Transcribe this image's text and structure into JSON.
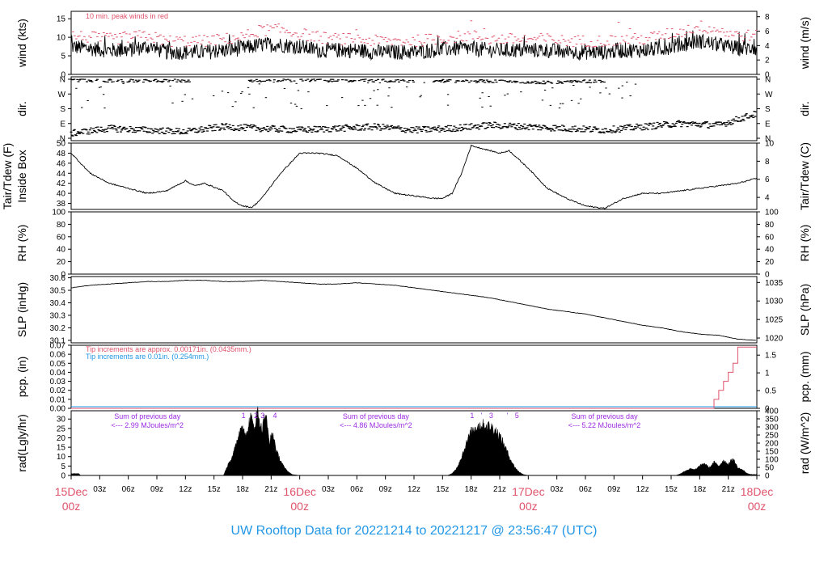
{
  "footer_title": "UW Rooftop Data for 20221214  to  20221217 @ 23:56:47  (UTC)",
  "colors": {
    "trace": "#000000",
    "peak": "#df536b",
    "rain_tip": "#df536b",
    "rain_baseline": "#2297e6",
    "purple": "#9a2be0"
  },
  "time_axis": {
    "range_hours": [
      0,
      72
    ],
    "tick_labels": [
      {
        "h": 3,
        "label": "03z"
      },
      {
        "h": 6,
        "label": "06z"
      },
      {
        "h": 9,
        "label": "09z"
      },
      {
        "h": 12,
        "label": "12z"
      },
      {
        "h": 15,
        "label": "15z"
      },
      {
        "h": 18,
        "label": "18z"
      },
      {
        "h": 21,
        "label": "21z"
      },
      {
        "h": 27,
        "label": "03z"
      },
      {
        "h": 30,
        "label": "06z"
      },
      {
        "h": 33,
        "label": "09z"
      },
      {
        "h": 36,
        "label": "12z"
      },
      {
        "h": 39,
        "label": "15z"
      },
      {
        "h": 42,
        "label": "18z"
      },
      {
        "h": 45,
        "label": "21z"
      },
      {
        "h": 51,
        "label": "03z"
      },
      {
        "h": 54,
        "label": "06z"
      },
      {
        "h": 57,
        "label": "09z"
      },
      {
        "h": 60,
        "label": "12z"
      },
      {
        "h": 63,
        "label": "15z"
      },
      {
        "h": 66,
        "label": "18z"
      },
      {
        "h": 69,
        "label": "21z"
      }
    ],
    "day_labels": [
      {
        "h": 0,
        "line1": "15Dec",
        "line2": "00z"
      },
      {
        "h": 24,
        "line1": "16Dec",
        "line2": "00z"
      },
      {
        "h": 48,
        "line1": "17Dec",
        "line2": "00z"
      },
      {
        "h": 72,
        "line1": "18Dec",
        "line2": "00z"
      }
    ]
  },
  "chart_data": [
    {
      "type": "line",
      "id": "wind",
      "ylabel_left": "wind (kts)",
      "ylabel_right": "wind (m/s)",
      "ylim": [
        0,
        17
      ],
      "yticks_left": [
        0,
        5,
        10,
        15
      ],
      "right_ylim": [
        0,
        8.75
      ],
      "yticks_right": [
        0,
        2,
        4,
        6,
        8
      ],
      "annotation": "10 min. peak winds in red",
      "series": [
        {
          "name": "",
          "x": [
            0,
            2,
            4,
            6,
            8,
            10,
            12,
            14,
            16,
            18,
            20,
            22,
            24,
            26,
            28,
            30,
            32,
            34,
            36,
            38,
            40,
            42,
            44,
            46,
            48,
            50,
            52,
            54,
            56,
            58,
            60,
            62,
            64,
            66,
            68,
            70,
            72
          ],
          "values": [
            7.5,
            7,
            6.5,
            6.5,
            7.5,
            6,
            6,
            6,
            6.5,
            7,
            8,
            8,
            7.5,
            6.5,
            6.5,
            6.5,
            6,
            6,
            6,
            6.5,
            7,
            7,
            6.5,
            6.5,
            6.5,
            6.5,
            6,
            6,
            6,
            6.5,
            6.5,
            7,
            8,
            9,
            8,
            7,
            7
          ]
        },
        {
          "name": "10 min. peak winds",
          "x": [
            0,
            2,
            4,
            6,
            8,
            10,
            12,
            14,
            16,
            18,
            20,
            22,
            24,
            26,
            28,
            30,
            32,
            34,
            36,
            38,
            40,
            42,
            44,
            46,
            48,
            50,
            52,
            54,
            56,
            58,
            60,
            62,
            64,
            66,
            68,
            70,
            72
          ],
          "values": [
            10.5,
            10,
            9.5,
            10,
            10.5,
            9,
            9,
            9,
            9.5,
            10,
            12,
            12,
            11,
            10,
            9.5,
            9.5,
            9,
            9,
            9,
            9.5,
            10,
            10.5,
            9.5,
            9.5,
            9.5,
            9.5,
            9,
            9,
            9,
            9.5,
            9.5,
            10.5,
            11.5,
            13,
            12,
            10.5,
            10.5
          ]
        }
      ]
    },
    {
      "type": "scatter",
      "id": "dir",
      "ylabel_left": "dir.",
      "ylabel_right": "dir.",
      "yticks_left": [
        "N",
        "E",
        "S",
        "W",
        "N"
      ],
      "yticks_right": [
        "N",
        "E",
        "S",
        "W",
        "N"
      ],
      "series": [
        {
          "name": "",
          "x": [
            0,
            4,
            8,
            12,
            16,
            20,
            24,
            28,
            32,
            36,
            40,
            44,
            48,
            52,
            56,
            60,
            64,
            68,
            72
          ],
          "values": [
            30,
            60,
            50,
            40,
            70,
            60,
            50,
            60,
            70,
            50,
            60,
            80,
            70,
            60,
            50,
            70,
            90,
            80,
            150
          ]
        },
        {
          "name": "",
          "x": [
            0,
            6,
            12,
            20,
            26,
            32,
            38,
            44,
            50,
            56
          ],
          "values": [
            355,
            350,
            352,
            350,
            355,
            352,
            350,
            348,
            340,
            350
          ]
        }
      ]
    },
    {
      "type": "line",
      "id": "temp",
      "ylabel_left": "Tair/Tdew (F)",
      "ylabel_left2": "Inside Box",
      "ylabel_right": "Tair/Tdew (C)",
      "ylim": [
        36.8,
        50
      ],
      "yticks_left": [
        38,
        40,
        42,
        44,
        46,
        48,
        50
      ],
      "right_ylim": [
        2.67,
        10
      ],
      "yticks_right": [
        4,
        6,
        8,
        10
      ],
      "series": [
        {
          "name": "",
          "x": [
            0,
            1,
            2,
            4,
            6,
            8,
            10,
            12,
            13,
            14,
            16,
            17,
            18,
            19,
            20,
            22,
            24,
            26,
            28,
            30,
            32,
            34,
            36,
            38,
            39,
            40,
            41,
            42,
            44,
            45,
            46,
            48,
            50,
            52,
            54,
            56,
            58,
            60,
            62,
            64,
            66,
            68,
            70,
            72
          ],
          "values": [
            48,
            46,
            44,
            42,
            41,
            40,
            40.5,
            42.5,
            41.5,
            42,
            40.5,
            38.5,
            37.5,
            37.2,
            39,
            44,
            48,
            48,
            47.5,
            45,
            42,
            40,
            39.5,
            39,
            39,
            40,
            44,
            49.5,
            48.5,
            48,
            48.5,
            45,
            41,
            39,
            37.5,
            37,
            39,
            40,
            40,
            40.5,
            41,
            41.5,
            42,
            43
          ]
        }
      ]
    },
    {
      "type": "line",
      "id": "rh",
      "ylabel_left": "RH (%)",
      "ylabel_right": "RH (%)",
      "ylim": [
        0,
        100
      ],
      "yticks_left": [
        0,
        20,
        40,
        60,
        80,
        100
      ],
      "yticks_right": [
        0,
        20,
        40,
        60,
        80,
        100
      ],
      "series": []
    },
    {
      "type": "line",
      "id": "slp",
      "ylabel_left": "SLP (inHg)",
      "ylabel_right": "SLP (hPa)",
      "ylim": [
        30.08,
        30.61
      ],
      "yticks_left": [
        30.1,
        30.2,
        30.3,
        30.4,
        30.5,
        30.6
      ],
      "yticks_right": [
        1020,
        1025,
        1030,
        1035
      ],
      "right_ylim": [
        1018.7,
        1036.6
      ],
      "series": [
        {
          "name": "",
          "x": [
            0,
            2,
            4,
            6,
            8,
            10,
            12,
            14,
            16,
            18,
            20,
            22,
            24,
            26,
            28,
            30,
            32,
            34,
            36,
            38,
            40,
            42,
            44,
            46,
            48,
            50,
            52,
            54,
            56,
            58,
            60,
            62,
            64,
            66,
            68,
            70,
            72
          ],
          "values": [
            30.52,
            30.54,
            30.55,
            30.56,
            30.57,
            30.57,
            30.58,
            30.58,
            30.57,
            30.57,
            30.58,
            30.57,
            30.56,
            30.55,
            30.55,
            30.56,
            30.55,
            30.54,
            30.52,
            30.5,
            30.48,
            30.46,
            30.44,
            30.41,
            30.38,
            30.35,
            30.33,
            30.31,
            30.28,
            30.25,
            30.22,
            30.2,
            30.17,
            30.15,
            30.14,
            30.11,
            30.1
          ]
        }
      ]
    },
    {
      "type": "line",
      "id": "pcp",
      "ylabel_left": "pcp. (in)",
      "ylabel_right": "pcp. (mm)",
      "ylim": [
        0,
        0.07
      ],
      "yticks_left": [
        0,
        0.01,
        0.02,
        0.03,
        0.04,
        0.05,
        0.06,
        0.07
      ],
      "right_ylim": [
        0,
        1.778
      ],
      "yticks_right": [
        0,
        0.5,
        1,
        1.5
      ],
      "annotation_red": "Tip increments are approx. 0.00171in. (0.0435mm.)",
      "annotation_blue": "Tip increments are 0.01in. (0.254mm.)",
      "series": [
        {
          "name": "",
          "x": [
            0,
            67,
            67.5,
            68,
            68.5,
            69,
            69.5,
            70,
            72
          ],
          "values": [
            0,
            0,
            0.01,
            0.02,
            0.03,
            0.04,
            0.05,
            0.068,
            0.068
          ]
        }
      ]
    },
    {
      "type": "area",
      "id": "rad",
      "ylabel_left": "rad(Lgly/hr)",
      "ylabel_right": "rad (W/m^2)",
      "ylim": [
        0,
        34.4
      ],
      "yticks_left": [
        0,
        5,
        10,
        15,
        20,
        25,
        30
      ],
      "right_ylim": [
        0,
        400
      ],
      "yticks_right": [
        0,
        50,
        100,
        150,
        200,
        250,
        300,
        350,
        400
      ],
      "annotations": [
        {
          "h": 8,
          "line1": "Sum of previous day",
          "line2": "<--- 2.99 MJoules/m^2"
        },
        {
          "h": 32,
          "line1": "Sum of previous day",
          "line2": "<--- 4.86 MJoules/m^2"
        },
        {
          "h": 56,
          "line1": "Sum of previous day",
          "line2": "<--- 5.22 MJoules/m^2"
        }
      ],
      "hour_marks": [
        {
          "h": 18.1,
          "label": "1"
        },
        {
          "h": 19.4,
          "label": "2"
        },
        {
          "h": 20.1,
          "label": "3"
        },
        {
          "h": 21.4,
          "label": "4"
        },
        {
          "h": 42.1,
          "label": "1"
        },
        {
          "h": 43.1,
          "label": "'"
        },
        {
          "h": 44.1,
          "label": "3"
        },
        {
          "h": 45.8,
          "label": "'"
        },
        {
          "h": 46.8,
          "label": "5"
        }
      ],
      "series": [
        {
          "name": "",
          "x": [
            0,
            0.8,
            1,
            15.5,
            16,
            16.4,
            16.8,
            17.2,
            17.6,
            18,
            18.4,
            18.8,
            19.2,
            19.6,
            20,
            20.4,
            20.8,
            21.2,
            21.6,
            22,
            22.4,
            22.8,
            23.2,
            24,
            39.5,
            40,
            40.5,
            41,
            41.5,
            42,
            42.5,
            43,
            43.5,
            44,
            44.5,
            45,
            45.5,
            46,
            46.5,
            47,
            47.5,
            48,
            48.2,
            63.5,
            64,
            64.5,
            65,
            65.5,
            66,
            66.5,
            67,
            67.5,
            68,
            68.5,
            69,
            69.5,
            70,
            70.5,
            71,
            71.5,
            72
          ],
          "values": [
            1,
            1,
            0,
            0,
            0,
            5,
            9,
            14,
            22,
            28,
            20,
            31,
            26,
            34,
            24,
            33,
            18,
            22,
            12,
            8,
            4,
            2,
            0.5,
            0,
            0,
            1,
            4,
            10,
            17,
            23,
            26,
            27,
            26.5,
            26,
            24.5,
            21,
            16,
            10,
            5,
            2,
            0.5,
            0,
            0,
            0,
            1,
            2.5,
            3.5,
            3,
            5,
            6.5,
            4,
            7,
            5,
            8,
            6,
            9,
            4,
            3,
            1,
            0.5,
            0.5
          ]
        }
      ]
    }
  ]
}
